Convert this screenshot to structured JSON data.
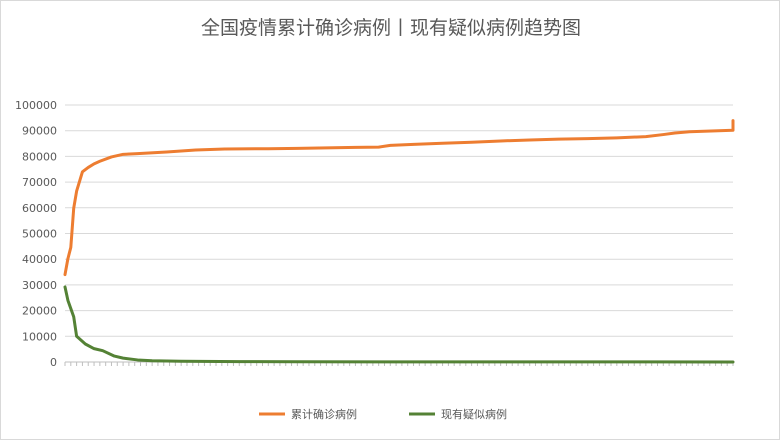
{
  "chart_data": {
    "type": "line",
    "title": "全国疫情累计确诊病例丨现有疑似病例趋势图",
    "xlabel": "",
    "ylabel": "",
    "ylim": [
      0,
      100000
    ],
    "yticks": [
      0,
      10000,
      20000,
      30000,
      40000,
      50000,
      60000,
      70000,
      80000,
      90000,
      100000
    ],
    "grid": true,
    "legend_position": "bottom",
    "x_count": 230,
    "series": [
      {
        "name": "累计确诊病例",
        "color": "#ed7d31",
        "points": [
          [
            0,
            34000
          ],
          [
            1,
            40200
          ],
          [
            2,
            44600
          ],
          [
            3,
            59800
          ],
          [
            4,
            66500
          ],
          [
            6,
            74000
          ],
          [
            8,
            75700
          ],
          [
            10,
            77100
          ],
          [
            12,
            78100
          ],
          [
            16,
            79800
          ],
          [
            20,
            80800
          ],
          [
            25,
            81100
          ],
          [
            35,
            81700
          ],
          [
            45,
            82500
          ],
          [
            55,
            82900
          ],
          [
            70,
            83000
          ],
          [
            80,
            83100
          ],
          [
            90,
            83300
          ],
          [
            100,
            83500
          ],
          [
            108,
            83600
          ],
          [
            112,
            84300
          ],
          [
            120,
            84700
          ],
          [
            130,
            85100
          ],
          [
            140,
            85500
          ],
          [
            150,
            86000
          ],
          [
            160,
            86400
          ],
          [
            170,
            86700
          ],
          [
            180,
            86900
          ],
          [
            190,
            87200
          ],
          [
            200,
            87700
          ],
          [
            206,
            88500
          ],
          [
            210,
            89100
          ],
          [
            215,
            89600
          ],
          [
            225,
            90000
          ],
          [
            240,
            90200
          ],
          [
            255,
            90500
          ],
          [
            270,
            90800
          ],
          [
            285,
            91100
          ],
          [
            300,
            91500
          ],
          [
            315,
            91900
          ],
          [
            325,
            92200
          ],
          [
            335,
            92800
          ],
          [
            342,
            93500
          ],
          [
            344,
            93900
          ]
        ]
      },
      {
        "name": "现有疑似病例",
        "color": "#548235",
        "points": [
          [
            0,
            29200
          ],
          [
            1,
            24000
          ],
          [
            3,
            17600
          ],
          [
            4,
            10000
          ],
          [
            7,
            7000
          ],
          [
            10,
            5200
          ],
          [
            13,
            4400
          ],
          [
            17,
            2300
          ],
          [
            20,
            1500
          ],
          [
            25,
            800
          ],
          [
            30,
            500
          ],
          [
            40,
            300
          ],
          [
            60,
            150
          ],
          [
            80,
            80
          ],
          [
            120,
            50
          ],
          [
            200,
            30
          ],
          [
            344,
            20
          ]
        ]
      }
    ]
  }
}
